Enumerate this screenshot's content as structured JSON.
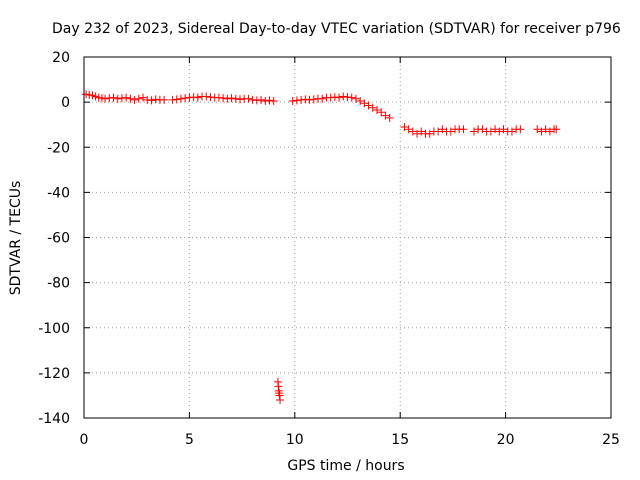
{
  "chart_data": {
    "type": "scatter",
    "title": "Day 232 of 2023, Sidereal Day-to-day VTEC variation (SDTVAR) for receiver p796",
    "xlabel": "GPS time / hours",
    "ylabel": "SDTVAR / TECUs",
    "xlim": [
      0,
      25
    ],
    "ylim": [
      -140,
      20
    ],
    "xticks": [
      0,
      5,
      10,
      15,
      20,
      25
    ],
    "yticks": [
      -140,
      -120,
      -100,
      -80,
      -60,
      -40,
      -20,
      0,
      20
    ],
    "grid": true,
    "marker": "plus",
    "marker_color": "#ff0000",
    "series": [
      {
        "name": "SDTVAR",
        "x": [
          0.1,
          0.25,
          0.4,
          0.55,
          0.7,
          0.85,
          1.0,
          1.2,
          1.4,
          1.6,
          1.8,
          2.0,
          2.2,
          2.4,
          2.6,
          2.8,
          3.0,
          3.2,
          3.4,
          3.6,
          3.8,
          4.2,
          4.4,
          4.6,
          4.8,
          5.0,
          5.2,
          5.4,
          5.6,
          5.8,
          6.0,
          6.2,
          6.4,
          6.6,
          6.8,
          7.0,
          7.2,
          7.4,
          7.6,
          7.8,
          8.0,
          8.2,
          8.4,
          8.6,
          8.8,
          9.0,
          9.2,
          9.22,
          9.24,
          9.26,
          9.28,
          9.3,
          9.9,
          10.1,
          10.3,
          10.5,
          10.7,
          10.9,
          11.1,
          11.3,
          11.5,
          11.7,
          11.9,
          12.1,
          12.3,
          12.5,
          12.7,
          12.9,
          13.1,
          13.3,
          13.5,
          13.7,
          13.9,
          14.1,
          14.3,
          14.5,
          15.2,
          15.4,
          15.6,
          15.8,
          16.0,
          16.2,
          16.4,
          16.6,
          16.8,
          17.0,
          17.2,
          17.4,
          17.6,
          17.8,
          18.0,
          18.5,
          18.7,
          18.9,
          19.1,
          19.3,
          19.5,
          19.7,
          19.9,
          20.1,
          20.3,
          20.5,
          20.7,
          21.5,
          21.7,
          21.9,
          22.1,
          22.3,
          22.4
        ],
        "y": [
          3.5,
          3.2,
          3.0,
          2.5,
          2.0,
          1.8,
          1.5,
          1.8,
          2.0,
          1.5,
          1.8,
          2.0,
          1.5,
          1.0,
          1.5,
          2.0,
          1.0,
          0.8,
          1.2,
          1.0,
          1.0,
          1.0,
          1.2,
          1.5,
          1.8,
          2.0,
          2.2,
          2.0,
          2.5,
          2.5,
          2.2,
          2.0,
          2.0,
          1.8,
          1.5,
          1.8,
          1.5,
          1.2,
          1.5,
          1.5,
          1.0,
          0.8,
          1.0,
          0.5,
          0.8,
          0.5,
          -124,
          -126,
          -128,
          -129,
          -130,
          -132,
          0.5,
          0.8,
          1.0,
          1.2,
          1.0,
          1.2,
          1.5,
          1.5,
          2.0,
          2.0,
          2.2,
          2.0,
          2.5,
          2.2,
          2.0,
          1.5,
          0.5,
          -0.5,
          -1.5,
          -2.5,
          -3.5,
          -4.5,
          -6.0,
          -7.0,
          -11,
          -12,
          -13,
          -14,
          -13,
          -14,
          -14,
          -13,
          -13,
          -12,
          -13,
          -13,
          -12,
          -12,
          -12,
          -13,
          -12,
          -12,
          -13,
          -13,
          -12,
          -13,
          -12,
          -13,
          -13,
          -12,
          -12,
          -12,
          -13,
          -12,
          -13,
          -12,
          -12
        ]
      }
    ]
  }
}
